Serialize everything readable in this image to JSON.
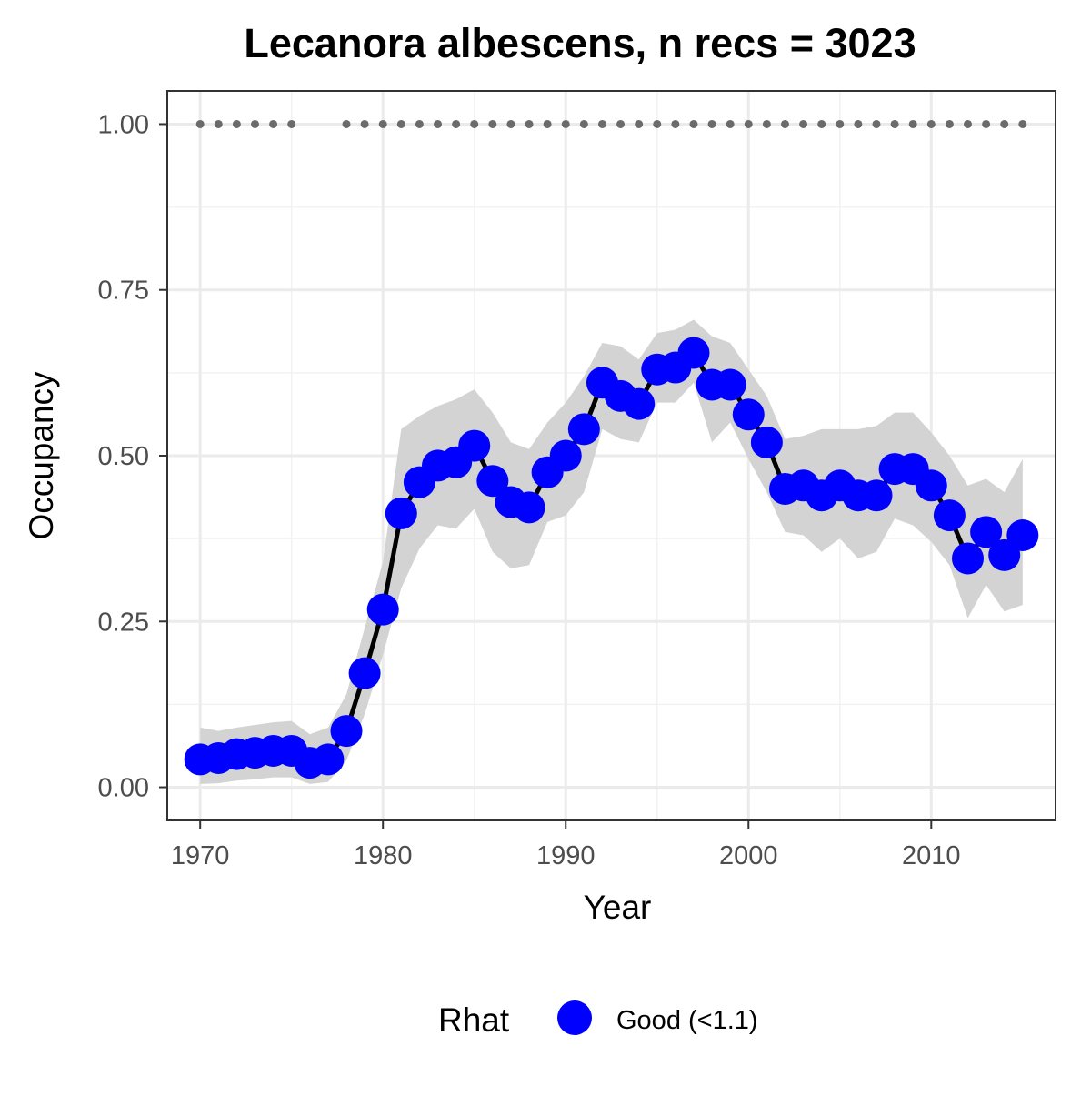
{
  "chart_data": {
    "type": "line",
    "title": "Lecanora albescens, n recs = 3023",
    "xlabel": "Year",
    "ylabel": "Occupancy",
    "xlim": [
      1968.2,
      2016.8
    ],
    "ylim": [
      -0.05,
      1.05
    ],
    "x_ticks": [
      1970,
      1980,
      1990,
      2000,
      2010
    ],
    "x_tick_labels": [
      "1970",
      "1980",
      "1990",
      "2000",
      "2010"
    ],
    "y_ticks": [
      0,
      0.25,
      0.5,
      0.75,
      1
    ],
    "y_tick_labels": [
      "0.00",
      "0.25",
      "0.50",
      "0.75",
      "1.00"
    ],
    "grid": true,
    "legend": {
      "title": "Rhat",
      "position": "bottom",
      "entries": [
        {
          "label": "Good (<1.1)",
          "color": "#0000ff"
        }
      ]
    },
    "colors": {
      "points": "#0000ff",
      "line": "#000000",
      "ribbon": "#d3d3d3",
      "record_dots": "#6b6b6b"
    },
    "x": [
      1970,
      1971,
      1972,
      1973,
      1974,
      1975,
      1976,
      1977,
      1978,
      1979,
      1980,
      1981,
      1982,
      1983,
      1984,
      1985,
      1986,
      1987,
      1988,
      1989,
      1990,
      1991,
      1992,
      1993,
      1994,
      1995,
      1996,
      1997,
      1998,
      1999,
      2000,
      2001,
      2002,
      2003,
      2004,
      2005,
      2006,
      2007,
      2008,
      2009,
      2010,
      2011,
      2012,
      2013,
      2014,
      2015
    ],
    "occupancy": [
      0.042,
      0.044,
      0.05,
      0.052,
      0.055,
      0.055,
      0.037,
      0.042,
      0.085,
      0.172,
      0.268,
      0.413,
      0.46,
      0.485,
      0.49,
      0.515,
      0.462,
      0.43,
      0.422,
      0.475,
      0.5,
      0.54,
      0.61,
      0.59,
      0.578,
      0.63,
      0.633,
      0.655,
      0.607,
      0.607,
      0.562,
      0.52,
      0.45,
      0.455,
      0.44,
      0.455,
      0.44,
      0.44,
      0.48,
      0.48,
      0.455,
      0.41,
      0.345,
      0.385,
      0.35,
      0.38
    ],
    "lower": [
      0.005,
      0.006,
      0.01,
      0.012,
      0.015,
      0.015,
      0.005,
      0.008,
      0.04,
      0.11,
      0.2,
      0.3,
      0.36,
      0.395,
      0.39,
      0.42,
      0.355,
      0.33,
      0.335,
      0.4,
      0.41,
      0.445,
      0.54,
      0.525,
      0.52,
      0.58,
      0.58,
      0.61,
      0.52,
      0.55,
      0.495,
      0.445,
      0.385,
      0.38,
      0.355,
      0.375,
      0.345,
      0.355,
      0.405,
      0.395,
      0.37,
      0.335,
      0.255,
      0.305,
      0.265,
      0.275
    ],
    "upper": [
      0.09,
      0.085,
      0.09,
      0.094,
      0.098,
      0.1,
      0.08,
      0.09,
      0.14,
      0.24,
      0.34,
      0.54,
      0.56,
      0.575,
      0.585,
      0.6,
      0.565,
      0.52,
      0.51,
      0.55,
      0.58,
      0.62,
      0.67,
      0.665,
      0.645,
      0.685,
      0.69,
      0.705,
      0.68,
      0.67,
      0.63,
      0.59,
      0.525,
      0.53,
      0.54,
      0.54,
      0.54,
      0.545,
      0.565,
      0.565,
      0.535,
      0.5,
      0.455,
      0.465,
      0.445,
      0.495
    ],
    "record_years": [
      1970,
      1971,
      1972,
      1973,
      1974,
      1975,
      1978,
      1979,
      1980,
      1981,
      1982,
      1983,
      1984,
      1985,
      1986,
      1987,
      1988,
      1989,
      1990,
      1991,
      1992,
      1993,
      1994,
      1995,
      1996,
      1997,
      1998,
      1999,
      2000,
      2001,
      2002,
      2003,
      2004,
      2005,
      2006,
      2007,
      2008,
      2009,
      2010,
      2011,
      2012,
      2013,
      2014,
      2015
    ],
    "record_level": 1.0
  }
}
